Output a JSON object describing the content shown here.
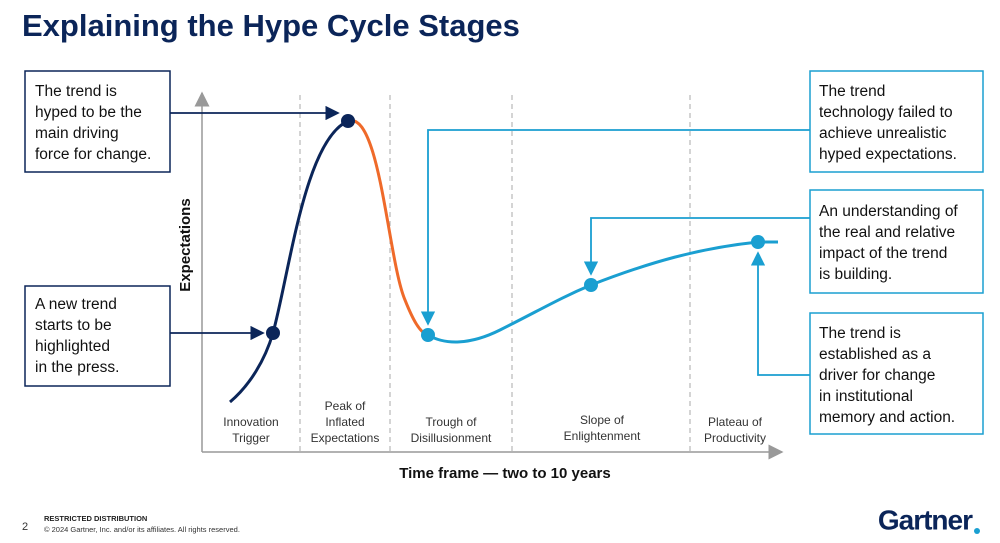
{
  "title": "Explaining the Hype Cycle Stages",
  "axes": {
    "y_label": "Expectations",
    "x_label": "Time frame — two to 10 years"
  },
  "stages": [
    [
      "Innovation",
      "Trigger"
    ],
    [
      "Peak of",
      "Inflated",
      "Expectations"
    ],
    [
      "Trough of",
      "Disillusionment"
    ],
    [
      "Slope of",
      "Enlightenment"
    ],
    [
      "Plateau of",
      "Productivity"
    ]
  ],
  "callouts": [
    [
      "The trend is",
      "hyped to be the",
      "main driving",
      "force for change."
    ],
    [
      "A new trend",
      "starts to be",
      "highlighted",
      "in the press."
    ],
    [
      "The trend",
      "technology failed to",
      "achieve unrealistic",
      "hyped expectations."
    ],
    [
      "An understanding of",
      "the real and relative",
      "impact of the trend",
      "is building."
    ],
    [
      "The trend is",
      "established as a",
      "driver for change",
      "in institutional",
      "memory and action."
    ]
  ],
  "footer": {
    "page": "2",
    "distribution": "RESTRICTED DISTRIBUTION",
    "copyright": "© 2024 Gartner, Inc. and/or its affiliates. All rights reserved.",
    "logo": "Gartner"
  }
}
